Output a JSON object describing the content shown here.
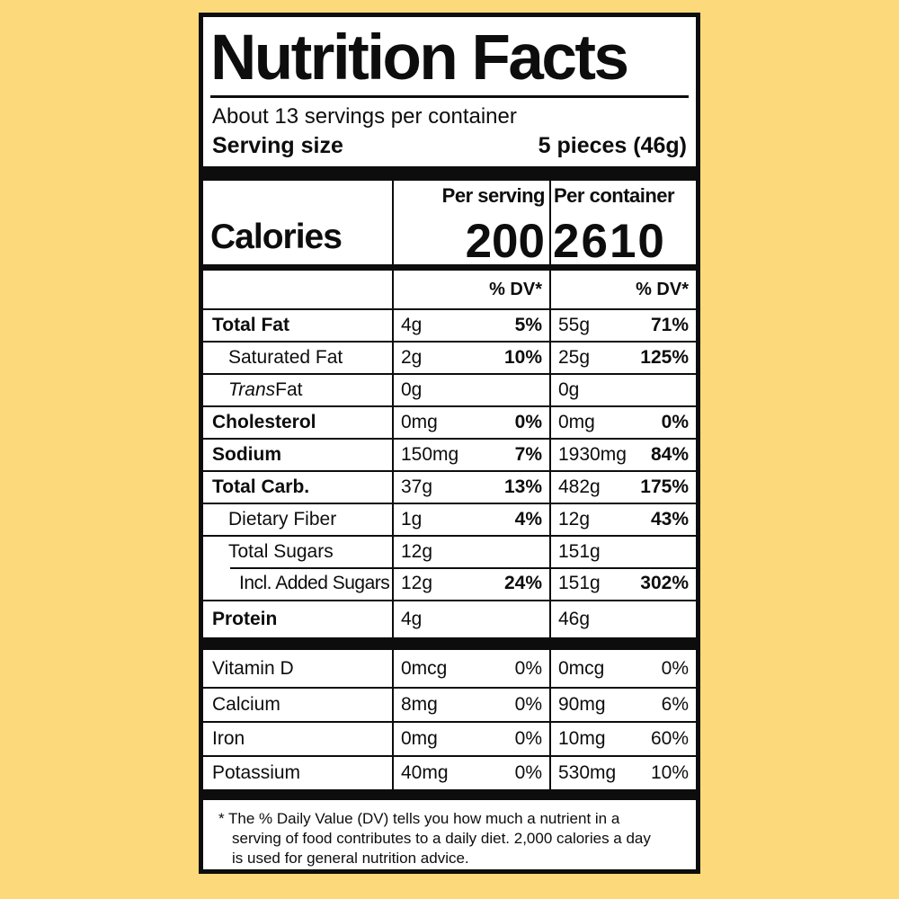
{
  "page": {
    "colors": {
      "background": "#FCD97A",
      "label_background": "#FFFFFF",
      "ink": "#0d0d0d"
    }
  },
  "label": {
    "title": "Nutrition Facts",
    "servings_per_container": "About 13 servings per container",
    "serving_size_label": "Serving size",
    "serving_size_value": "5 pieces (46g)",
    "calories": {
      "label": "Calories",
      "per_serving_header": "Per serving",
      "per_container_header": "Per container",
      "per_serving_value": "200",
      "per_container_value": "2610"
    },
    "dv_header": "% DV*",
    "nutrient_rows": [
      {
        "name": "Total Fat",
        "bold": true,
        "indent": 0,
        "per_serving_amount": "4g",
        "per_serving_dv": "5%",
        "per_container_amount": "55g",
        "per_container_dv": "71%"
      },
      {
        "name": "Saturated Fat",
        "bold": false,
        "indent": 1,
        "per_serving_amount": "2g",
        "per_serving_dv": "10%",
        "per_container_amount": "25g",
        "per_container_dv": "125%"
      },
      {
        "name_italic": "Trans",
        "name": " Fat",
        "bold": false,
        "indent": 1,
        "per_serving_amount": "0g",
        "per_serving_dv": "",
        "per_container_amount": "0g",
        "per_container_dv": ""
      },
      {
        "name": "Cholesterol",
        "bold": true,
        "indent": 0,
        "per_serving_amount": "0mg",
        "per_serving_dv": "0%",
        "per_container_amount": "0mg",
        "per_container_dv": "0%"
      },
      {
        "name": "Sodium",
        "bold": true,
        "indent": 0,
        "per_serving_amount": "150mg",
        "per_serving_dv": "7%",
        "per_container_amount": "1930mg",
        "per_container_dv": "84%"
      },
      {
        "name": "Total Carb.",
        "bold": true,
        "indent": 0,
        "per_serving_amount": "37g",
        "per_serving_dv": "13%",
        "per_container_amount": "482g",
        "per_container_dv": "175%"
      },
      {
        "name": "Dietary Fiber",
        "bold": false,
        "indent": 1,
        "per_serving_amount": "1g",
        "per_serving_dv": "4%",
        "per_container_amount": "12g",
        "per_container_dv": "43%"
      },
      {
        "name": "Total Sugars",
        "bold": false,
        "indent": 1,
        "per_serving_amount": "12g",
        "per_serving_dv": "",
        "per_container_amount": "151g",
        "per_container_dv": ""
      },
      {
        "name": "Incl. Added Sugars",
        "bold": false,
        "indent": 2,
        "inset_rule": true,
        "per_serving_amount": "12g",
        "per_serving_dv": "24%",
        "per_container_amount": "151g",
        "per_container_dv": "302%"
      },
      {
        "name": "Protein",
        "bold": true,
        "indent": 0,
        "tall": true,
        "per_serving_amount": "4g",
        "per_serving_dv": "",
        "per_container_amount": "46g",
        "per_container_dv": ""
      }
    ],
    "vitamin_rows": [
      {
        "name": "Vitamin D",
        "per_serving_amount": "0mcg",
        "per_serving_dv": "0%",
        "per_container_amount": "0mcg",
        "per_container_dv": "0%"
      },
      {
        "name": "Calcium",
        "per_serving_amount": "8mg",
        "per_serving_dv": "0%",
        "per_container_amount": "90mg",
        "per_container_dv": "6%"
      },
      {
        "name": "Iron",
        "per_serving_amount": "0mg",
        "per_serving_dv": "0%",
        "per_container_amount": "10mg",
        "per_container_dv": "60%"
      },
      {
        "name": "Potassium",
        "per_serving_amount": "40mg",
        "per_serving_dv": "0%",
        "per_container_amount": "530mg",
        "per_container_dv": "10%"
      }
    ],
    "footnote": "* The % Daily Value (DV) tells you how much a nutrient in a serving of food contributes to a daily diet. 2,000 calories a day is used for general nutrition advice."
  }
}
